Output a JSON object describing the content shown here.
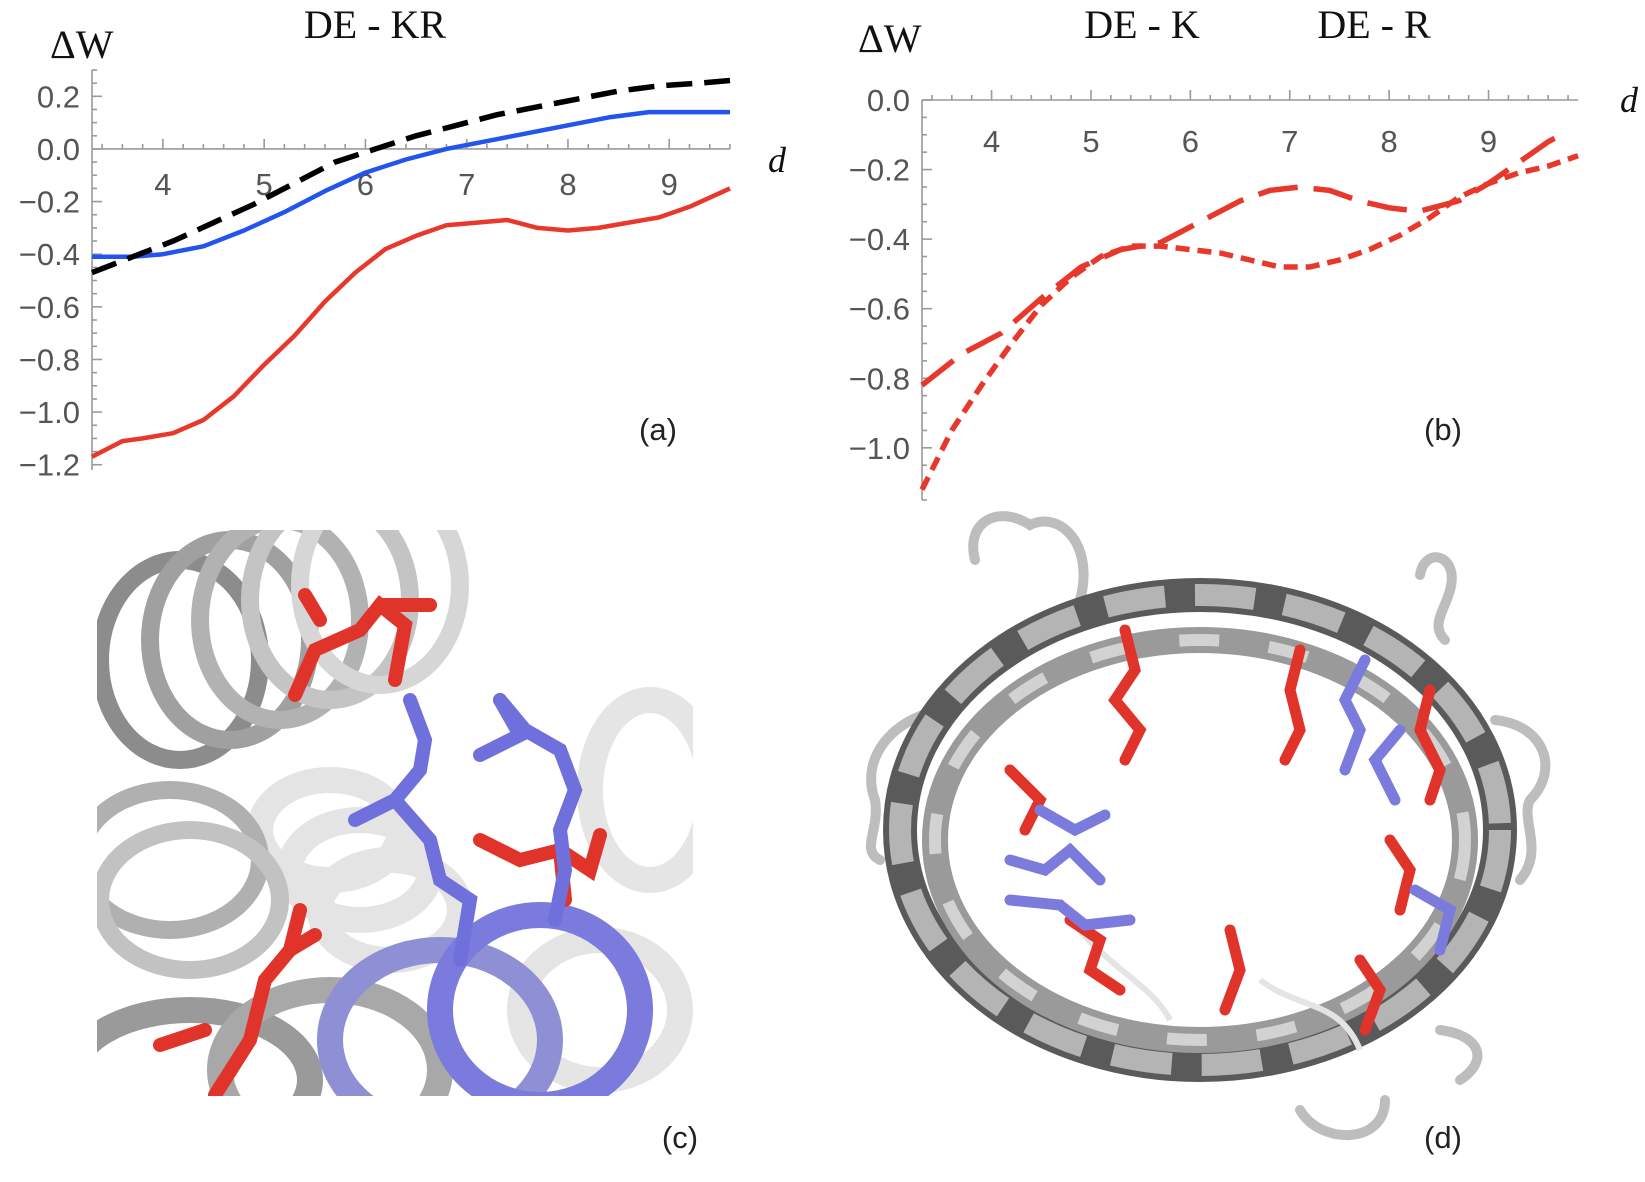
{
  "chart_data": [
    {
      "type": "line",
      "panel_label": "(a)",
      "title": "DE - KR",
      "ylabel": "ΔW",
      "xlabel": "d",
      "xlim": [
        3.3,
        9.6
      ],
      "ylim": [
        -1.22,
        0.3
      ],
      "x_ticks": [
        4,
        5,
        6,
        7,
        8,
        9
      ],
      "y_ticks": [
        0.2,
        0.0,
        -0.2,
        -0.4,
        -0.6,
        -0.8,
        -1.0,
        -1.2
      ],
      "y_tick_labels": [
        "0.2",
        "0.0",
        "−0.2",
        "−0.4",
        "−0.6",
        "−0.8",
        "−1.0",
        "−1.2"
      ],
      "grid": false,
      "series": [
        {
          "color": "#e8382b",
          "dash": "solid",
          "x": [
            3.3,
            3.6,
            3.8,
            4.1,
            4.4,
            4.7,
            5.0,
            5.3,
            5.6,
            5.9,
            6.2,
            6.5,
            6.8,
            7.1,
            7.4,
            7.7,
            8.0,
            8.3,
            8.6,
            8.9,
            9.2,
            9.6
          ],
          "y": [
            -1.17,
            -1.11,
            -1.1,
            -1.08,
            -1.03,
            -0.94,
            -0.82,
            -0.71,
            -0.58,
            -0.47,
            -0.38,
            -0.33,
            -0.29,
            -0.28,
            -0.27,
            -0.3,
            -0.31,
            -0.3,
            -0.28,
            -0.26,
            -0.22,
            -0.15
          ]
        },
        {
          "color": "#2255ee",
          "dash": "solid",
          "x": [
            3.3,
            3.7,
            4.0,
            4.4,
            4.8,
            5.2,
            5.6,
            6.0,
            6.4,
            6.8,
            7.2,
            7.6,
            8.0,
            8.4,
            8.8,
            9.2,
            9.6
          ],
          "y": [
            -0.41,
            -0.41,
            -0.4,
            -0.37,
            -0.31,
            -0.24,
            -0.16,
            -0.09,
            -0.04,
            0.0,
            0.03,
            0.06,
            0.09,
            0.12,
            0.14,
            0.14,
            0.14
          ]
        },
        {
          "color": "#000000",
          "dash": "dashed",
          "x": [
            3.3,
            3.7,
            4.1,
            4.5,
            4.9,
            5.3,
            5.7,
            6.1,
            6.5,
            6.9,
            7.3,
            7.7,
            8.1,
            8.5,
            8.9,
            9.3,
            9.6
          ],
          "y": [
            -0.47,
            -0.41,
            -0.35,
            -0.28,
            -0.21,
            -0.13,
            -0.05,
            0.0,
            0.05,
            0.09,
            0.13,
            0.16,
            0.19,
            0.22,
            0.24,
            0.25,
            0.26
          ]
        }
      ]
    },
    {
      "type": "line",
      "panel_label": "(b)",
      "title_left": "DE - K",
      "title_right": "DE - R",
      "ylabel": "ΔW",
      "xlabel": "d",
      "xlim": [
        3.3,
        9.9
      ],
      "ylim": [
        -1.15,
        0.0
      ],
      "x_ticks": [
        4,
        5,
        6,
        7,
        8,
        9
      ],
      "y_ticks": [
        0.0,
        -0.2,
        -0.4,
        -0.6,
        -0.8,
        -1.0
      ],
      "y_tick_labels": [
        "0.0",
        "−0.2",
        "−0.4",
        "−0.6",
        "−0.8",
        "−1.0"
      ],
      "grid": false,
      "series": [
        {
          "color": "#e8382b",
          "dash": "longdash",
          "x": [
            3.3,
            3.7,
            4.1,
            4.5,
            4.9,
            5.3,
            5.7,
            6.1,
            6.5,
            6.8,
            7.1,
            7.4,
            7.7,
            8.0,
            8.3,
            8.7,
            9.0,
            9.3,
            9.6,
            9.8
          ],
          "y": [
            -0.82,
            -0.73,
            -0.67,
            -0.57,
            -0.48,
            -0.43,
            -0.41,
            -0.35,
            -0.29,
            -0.26,
            -0.25,
            -0.26,
            -0.29,
            -0.31,
            -0.32,
            -0.29,
            -0.24,
            -0.18,
            -0.12,
            -0.09
          ]
        },
        {
          "color": "#e8382b",
          "dash": "shortdash",
          "x": [
            3.3,
            3.6,
            3.9,
            4.2,
            4.5,
            4.8,
            5.1,
            5.4,
            5.7,
            6.0,
            6.3,
            6.6,
            6.9,
            7.2,
            7.5,
            7.8,
            8.1,
            8.4,
            8.7,
            9.0,
            9.3,
            9.6,
            9.9
          ],
          "y": [
            -1.12,
            -0.95,
            -0.82,
            -0.7,
            -0.59,
            -0.51,
            -0.45,
            -0.42,
            -0.42,
            -0.43,
            -0.44,
            -0.46,
            -0.48,
            -0.48,
            -0.46,
            -0.43,
            -0.39,
            -0.34,
            -0.28,
            -0.24,
            -0.21,
            -0.19,
            -0.16
          ]
        }
      ]
    }
  ],
  "images": [
    {
      "panel_label": "(c)",
      "description_name": "helix-structure-render"
    },
    {
      "panel_label": "(d)",
      "description_name": "barrel-structure-render"
    }
  ],
  "colors": {
    "acidic": "#e0342a",
    "basic": "#7b7bde",
    "ribbon": "#a8a8a8"
  }
}
